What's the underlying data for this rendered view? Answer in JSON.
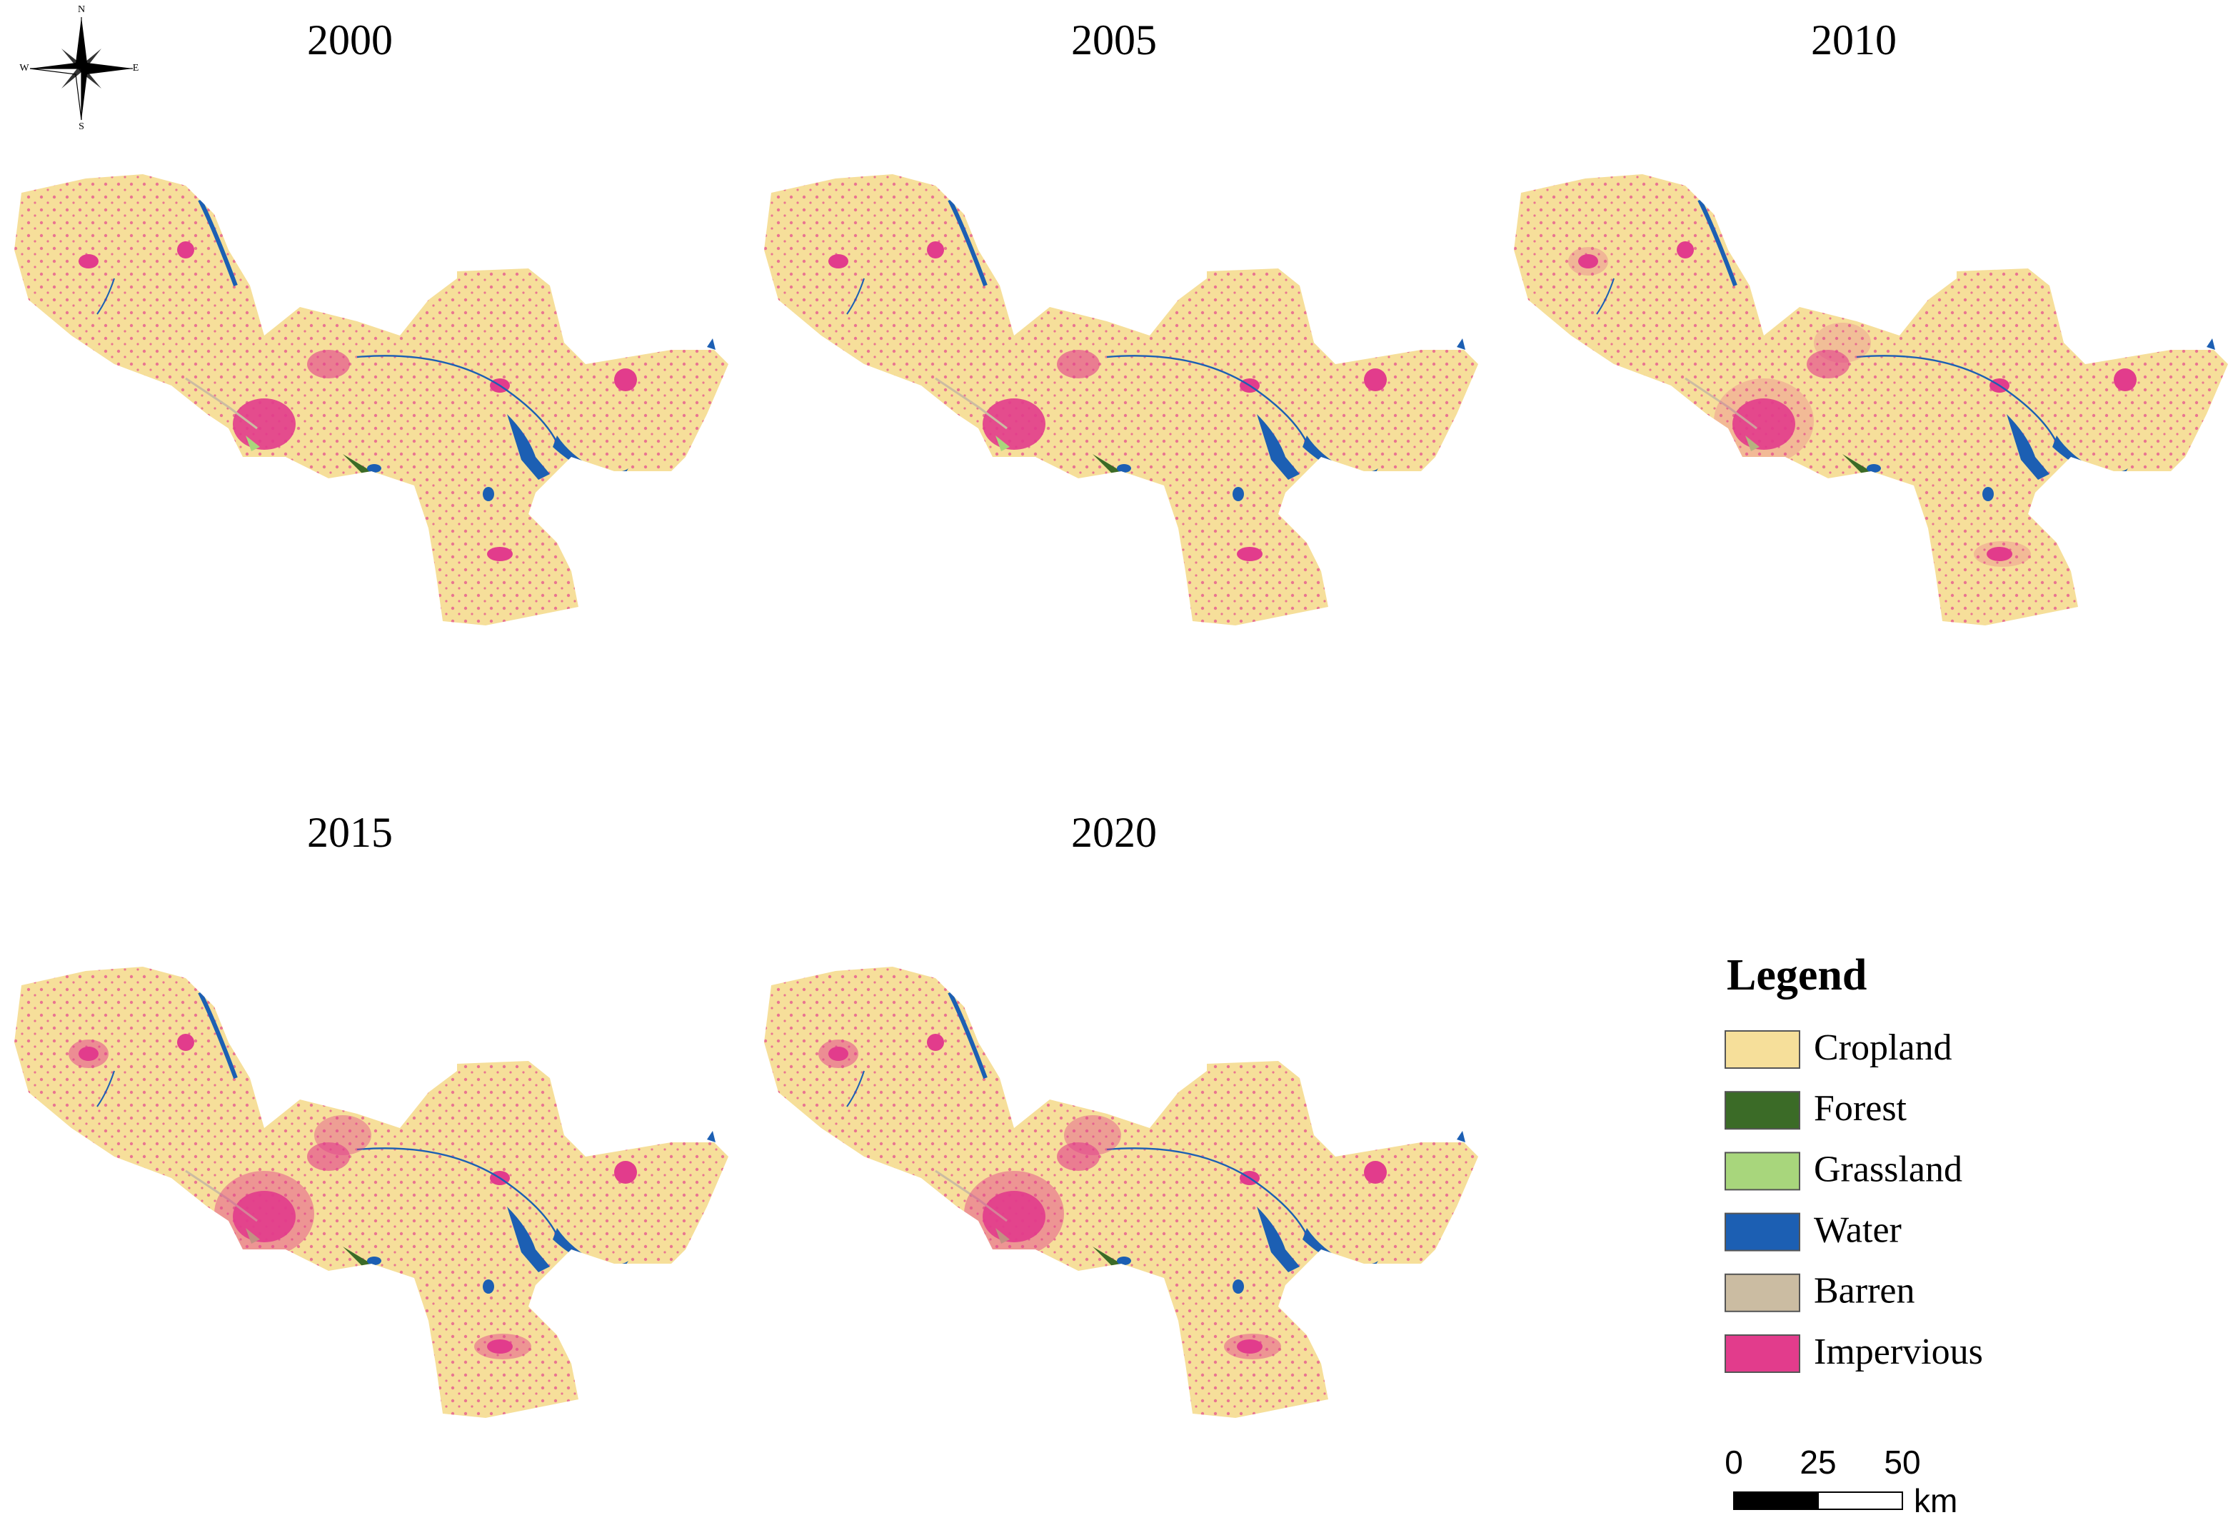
{
  "compass": {
    "n": "N",
    "s": "S",
    "e": "E",
    "w": "W"
  },
  "panels": [
    {
      "title": "2000"
    },
    {
      "title": "2005"
    },
    {
      "title": "2010"
    },
    {
      "title": "2015"
    },
    {
      "title": "2020"
    }
  ],
  "legend": {
    "title": "Legend",
    "items": [
      {
        "label": "Cropland",
        "color": "#f6df9a"
      },
      {
        "label": "Forest",
        "color": "#3b6b27"
      },
      {
        "label": "Grassland",
        "color": "#a8d67c"
      },
      {
        "label": "Water",
        "color": "#1c5fb3"
      },
      {
        "label": "Barren",
        "color": "#cbbca2"
      },
      {
        "label": "Impervious",
        "color": "#e23c8c"
      }
    ]
  },
  "scale_bar": {
    "ticks": [
      "0",
      "25",
      "50"
    ],
    "unit": "km"
  }
}
